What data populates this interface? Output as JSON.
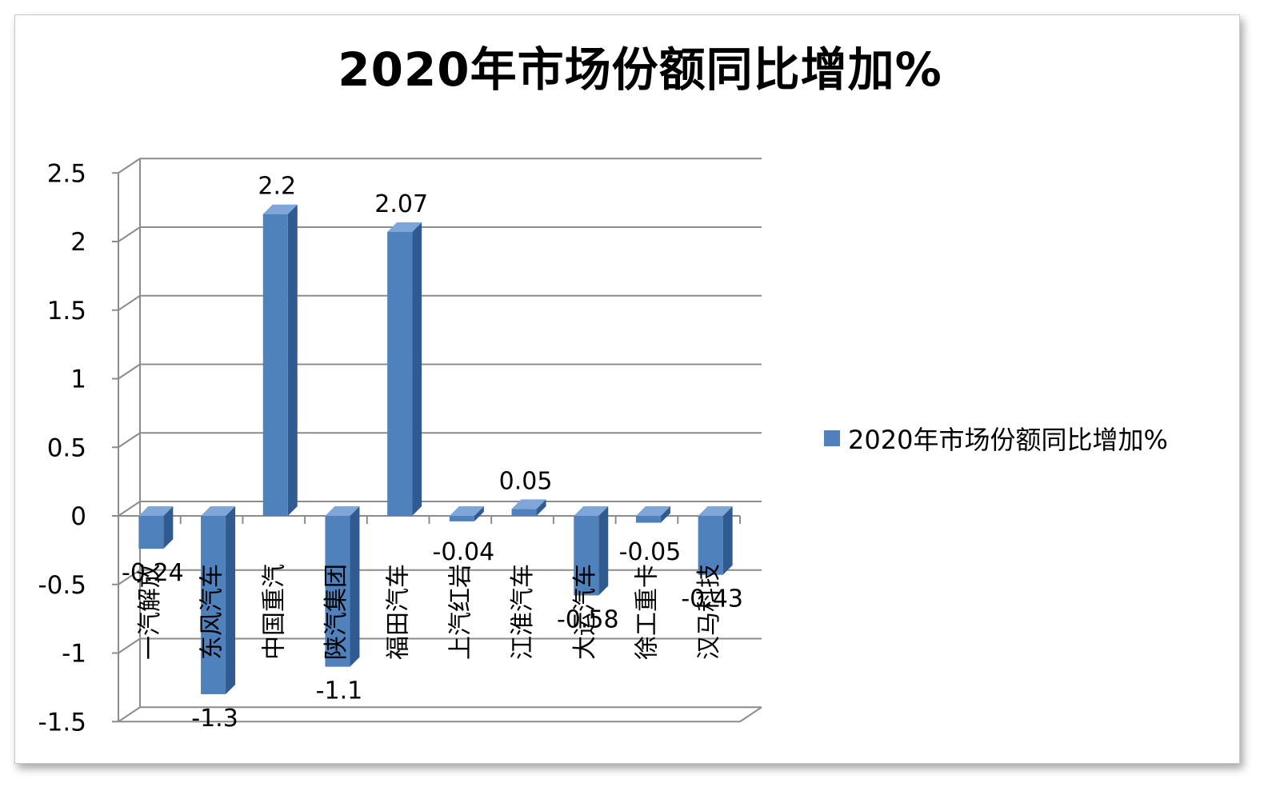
{
  "chart_data": {
    "type": "bar",
    "title": "2020年市场份额同比增加%",
    "categories": [
      "一汽解放",
      "东风汽车",
      "中国重汽",
      "陕汽集团",
      "福田汽车",
      "上汽红岩",
      "江淮汽车",
      "大运汽车",
      "徐工重卡",
      "汉马科技"
    ],
    "series": [
      {
        "name": "2020年市场份额同比增加%",
        "values": [
          -0.24,
          -1.3,
          2.2,
          -1.1,
          2.07,
          -0.04,
          0.05,
          -0.58,
          -0.05,
          -0.43
        ]
      }
    ],
    "data_labels": [
      "-0.24",
      "-1.3",
      "2.2",
      "-1.1",
      "2.07",
      "-0.04",
      "0.05",
      "-0.58",
      "-0.05",
      "-0.43"
    ],
    "y_ticks": [
      "2.5",
      "2",
      "1.5",
      "1",
      "0.5",
      "0",
      "-0.5",
      "-1",
      "-1.5"
    ],
    "ylim": [
      -1.5,
      2.5
    ],
    "grid": true,
    "legend": "right",
    "bar_color": "#4f81bd",
    "bar_side_color": "#2f5b92",
    "bar_top_color": "#7ea6d9"
  }
}
